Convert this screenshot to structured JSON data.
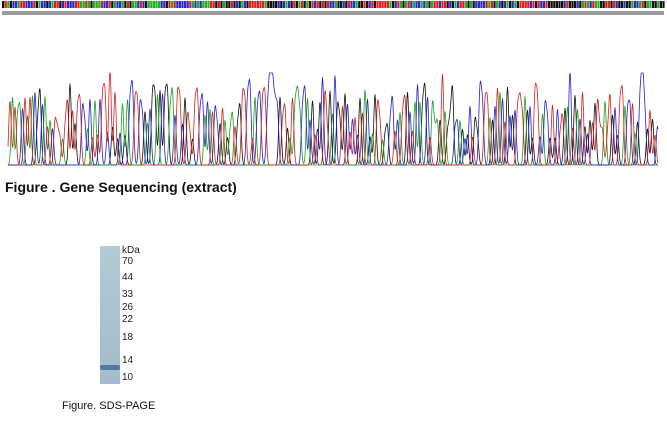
{
  "sequencing": {
    "caption": "Figure . Gene Sequencing (extract)"
  },
  "gel": {
    "unit": "kDa",
    "markers": [
      70,
      44,
      33,
      26,
      22,
      18,
      14,
      10
    ],
    "caption": "Figure. SDS-PAGE"
  }
}
